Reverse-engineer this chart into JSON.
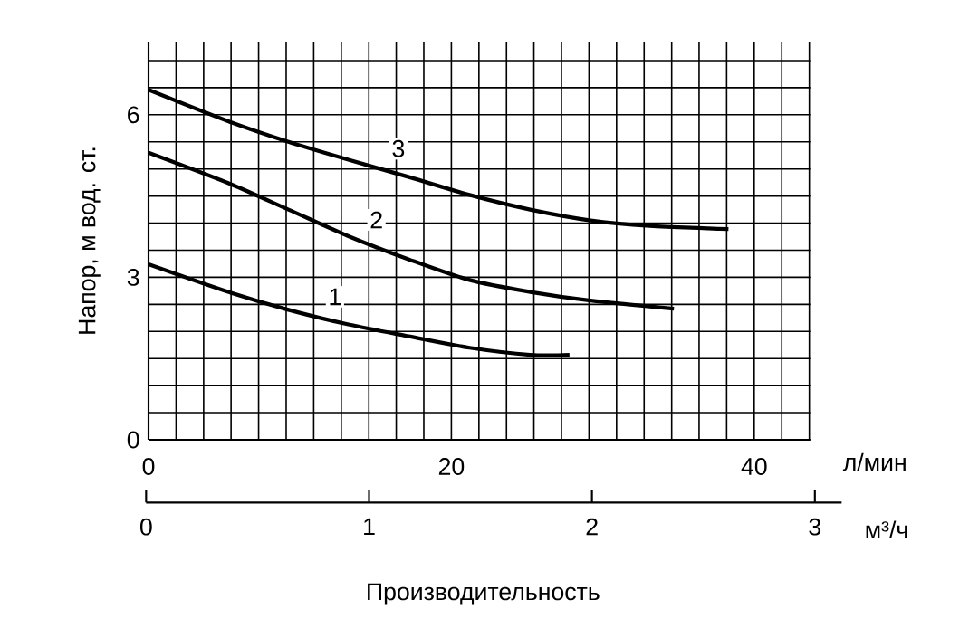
{
  "chart_data": {
    "type": "line",
    "ylabel": "Напор, м  вод. ст.",
    "xlabel": "л/мин",
    "x2label": "м³/ч",
    "annotations": [
      "Производительность"
    ],
    "xlim": [
      0,
      43.7
    ],
    "xticks": [
      0,
      {
        "value": 1.82,
        "label": null
      },
      {
        "value": 3.64,
        "label": null
      },
      {
        "value": 5.45,
        "label": null
      },
      {
        "value": 7.27,
        "label": null
      },
      {
        "value": 9.09,
        "label": null
      },
      {
        "value": 10.91,
        "label": null
      },
      {
        "value": 12.73,
        "label": null
      },
      {
        "value": 14.55,
        "label": null
      },
      {
        "value": 16.36,
        "label": null
      },
      {
        "value": 18.18,
        "label": null
      },
      20,
      {
        "value": 21.82,
        "label": null
      },
      {
        "value": 23.64,
        "label": null
      },
      {
        "value": 25.45,
        "label": null
      },
      {
        "value": 27.27,
        "label": null
      },
      {
        "value": 29.09,
        "label": null
      },
      {
        "value": 30.91,
        "label": null
      },
      {
        "value": 32.73,
        "label": null
      },
      {
        "value": 34.55,
        "label": null
      },
      {
        "value": 36.36,
        "label": null
      },
      {
        "value": 38.18,
        "label": null
      },
      40,
      {
        "value": 41.82,
        "label": null
      },
      {
        "value": 43.64,
        "label": null
      }
    ],
    "ylim": [
      0,
      7.35
    ],
    "yticks": [
      0,
      {
        "value": 0.5,
        "label": null
      },
      {
        "value": 1,
        "label": null
      },
      {
        "value": 1.5,
        "label": null
      },
      {
        "value": 2,
        "label": null
      },
      {
        "value": 2.5,
        "label": null
      },
      3,
      {
        "value": 3.5,
        "label": null
      },
      {
        "value": 4,
        "label": null
      },
      {
        "value": 4.5,
        "label": null
      },
      {
        "value": 5,
        "label": null
      },
      {
        "value": 5.5,
        "label": null
      },
      6,
      {
        "value": 6.5,
        "label": null
      },
      {
        "value": 7,
        "label": null
      }
    ],
    "x2lim": [
      0,
      3.12
    ],
    "x2ticks": [
      0,
      1,
      2,
      3
    ],
    "grid": true,
    "marker": "none",
    "line_style": "solid",
    "series": [
      {
        "name": "1",
        "color": "#000000",
        "x": [
          0,
          5.26,
          9.24,
          13.2,
          17.2,
          21.2,
          25.2,
          27.8
        ],
        "values": [
          3.24,
          2.73,
          2.4,
          2.13,
          1.91,
          1.7,
          1.57,
          1.57
        ]
      },
      {
        "name": "2",
        "color": "#000000",
        "x": [
          0,
          5.26,
          9.24,
          13.2,
          17.2,
          21.2,
          25.2,
          29.2,
          34.7
        ],
        "values": [
          5.3,
          4.74,
          4.25,
          3.76,
          3.33,
          2.95,
          2.73,
          2.57,
          2.42
        ]
      },
      {
        "name": "3",
        "color": "#000000",
        "x": [
          0,
          5.26,
          9.24,
          13.2,
          17.2,
          21.2,
          25.2,
          29.2,
          33.1,
          38.3
        ],
        "values": [
          6.46,
          5.88,
          5.5,
          5.17,
          4.85,
          4.52,
          4.25,
          4.05,
          3.95,
          3.89
        ]
      }
    ]
  }
}
